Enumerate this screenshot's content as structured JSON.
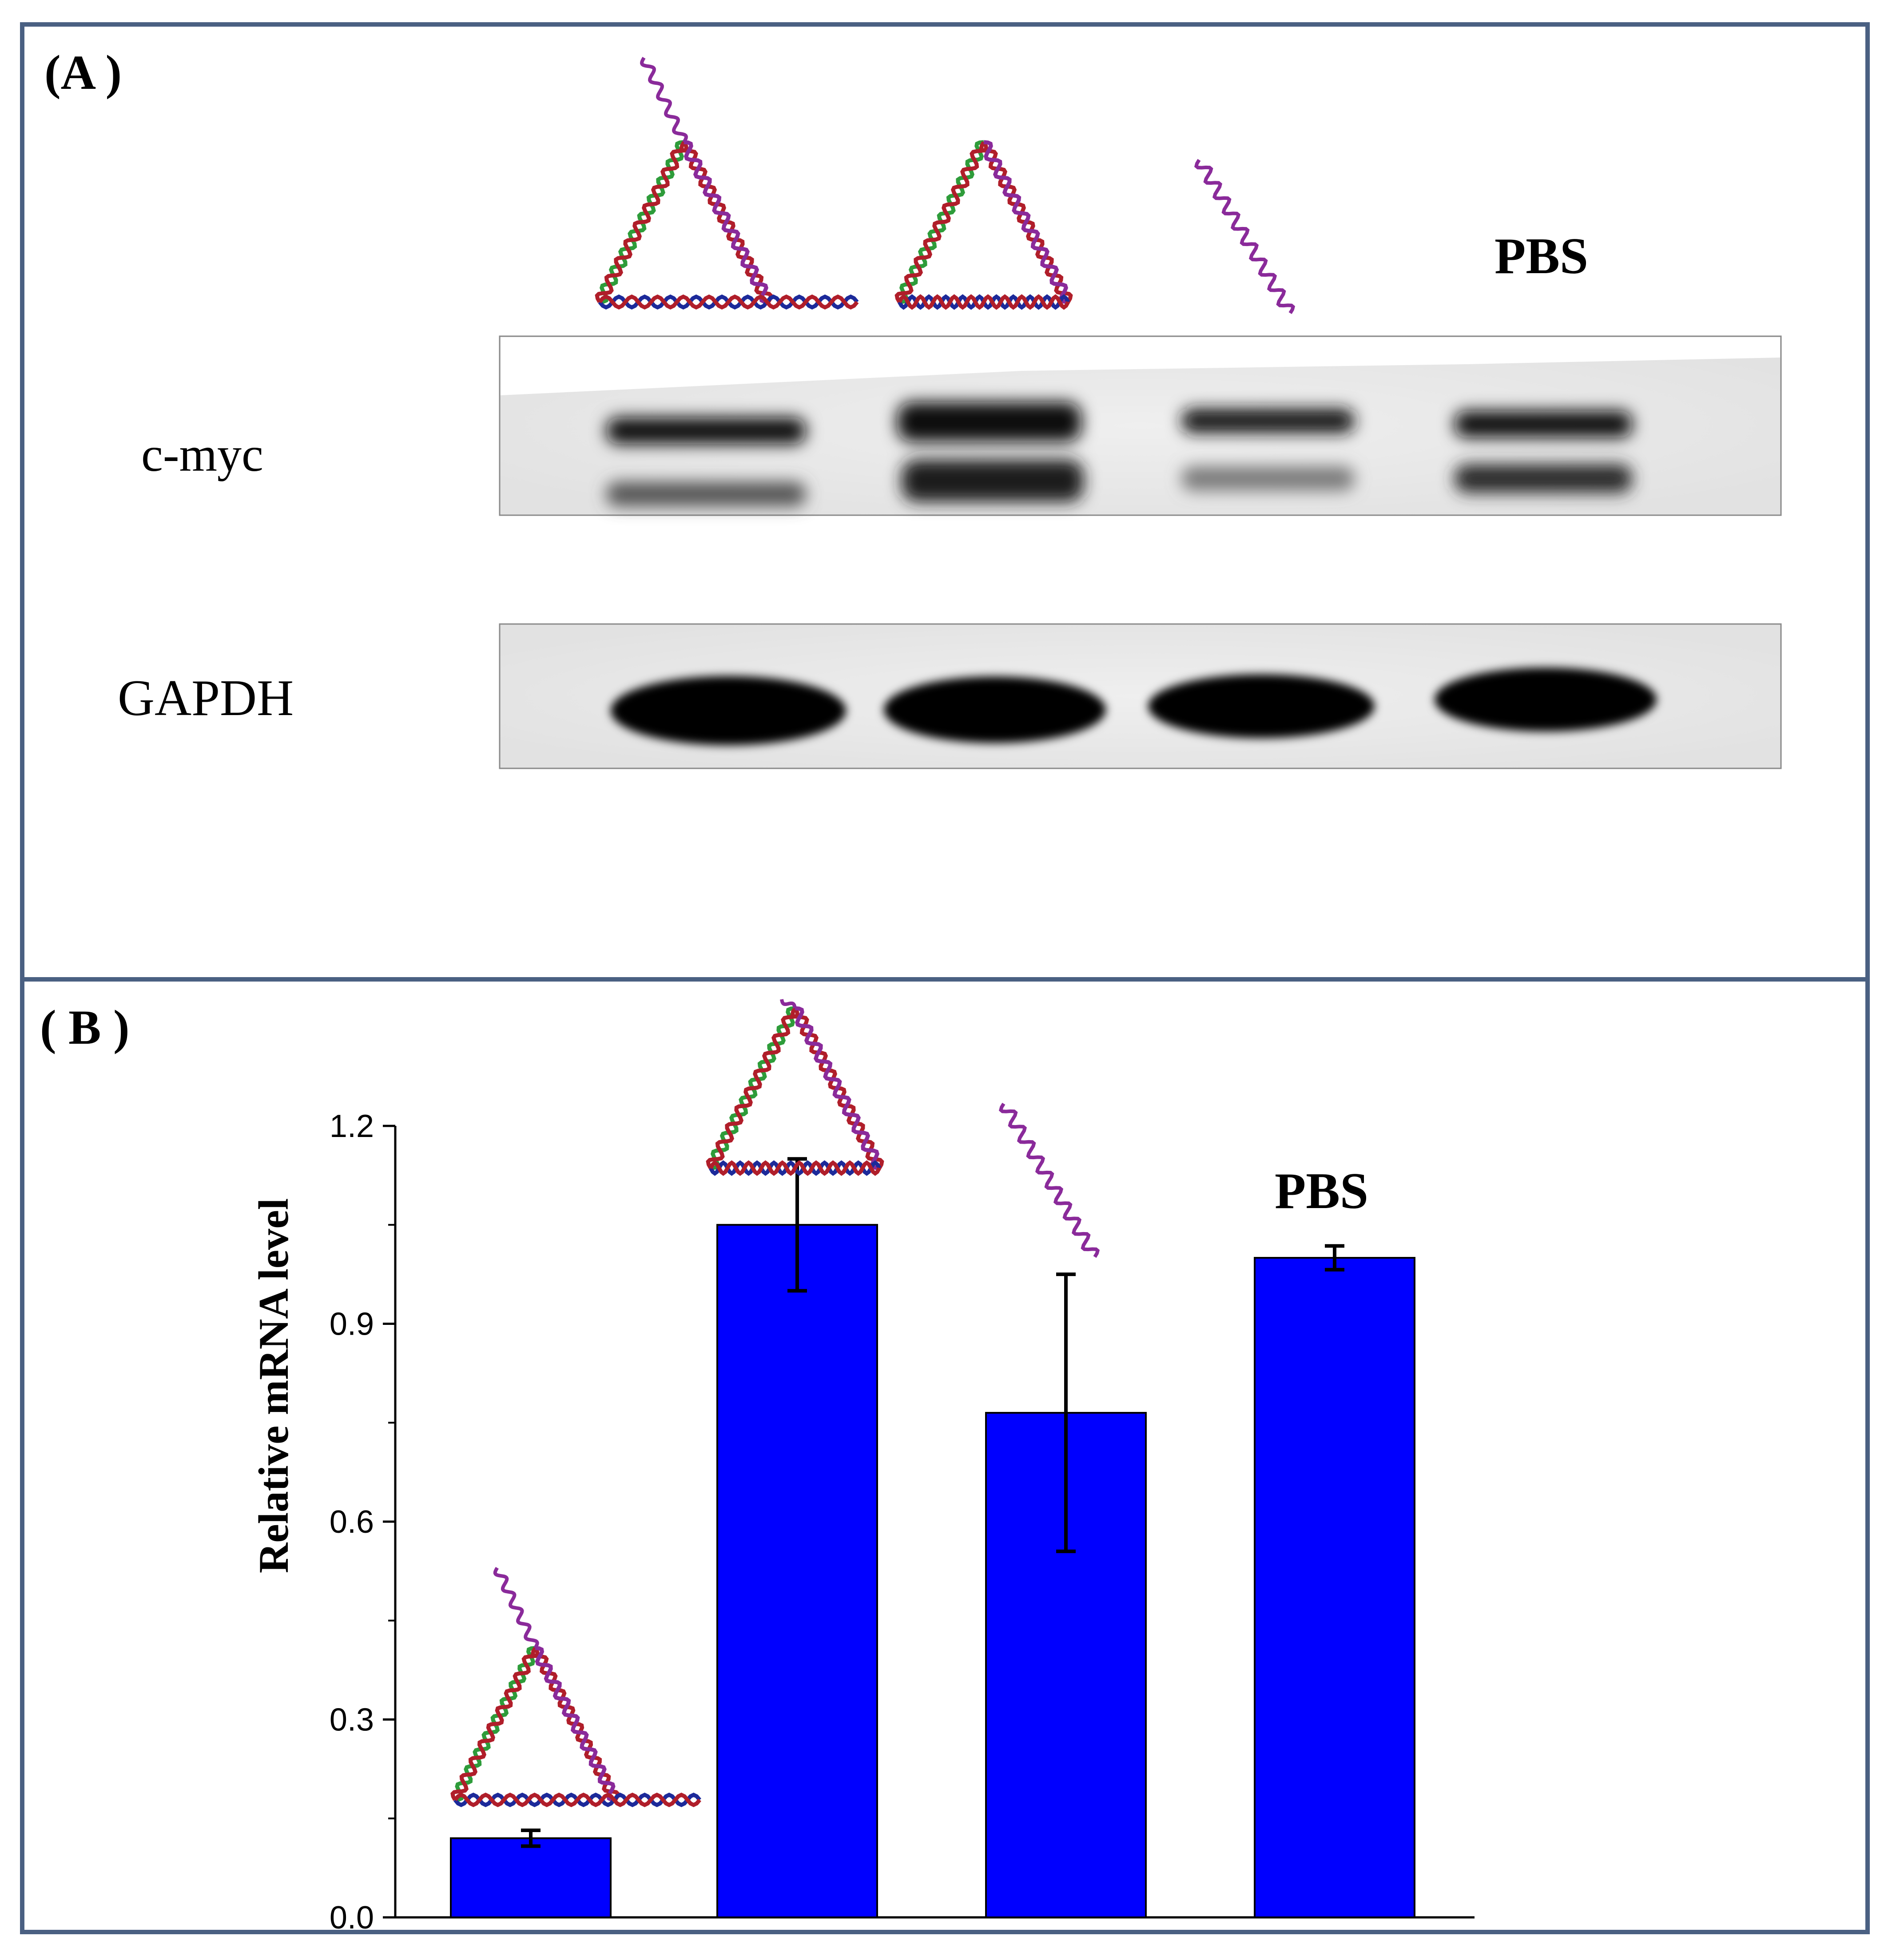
{
  "colors": {
    "frame": "#4a6082",
    "bar": "#0000ff",
    "strand_green": "#2e9c3a",
    "strand_red": "#b01e2a",
    "strand_purple": "#8a2a9a",
    "strand_blue": "#1c2a9a"
  },
  "panel_a": {
    "label": "(A )",
    "top_label": "PBS",
    "rows": [
      {
        "label": "c-myc"
      },
      {
        "label": "GAPDH"
      }
    ],
    "lane_icons": [
      "triangle-with-tail-icon",
      "triangle-icon",
      "single-strand-icon",
      "pbs-text"
    ]
  },
  "panel_b": {
    "label": "( B )",
    "pbs_label": "PBS",
    "bar_icons": [
      "triangle-with-tail-icon",
      "triangle-icon",
      "single-strand-icon",
      "pbs-text"
    ]
  },
  "chart_data": {
    "type": "bar",
    "title": "",
    "xlabel": "",
    "ylabel": "Relative mRNA level",
    "ylim": [
      0,
      1.2
    ],
    "yticks": [
      "0.0",
      "0.3",
      "0.6",
      "0.9",
      "1.2"
    ],
    "categories": [
      "",
      "",
      "",
      ""
    ],
    "values": [
      0.12,
      1.05,
      0.765,
      1.0
    ],
    "errors": [
      0.012,
      0.1,
      0.21,
      0.018
    ],
    "grid": false
  }
}
